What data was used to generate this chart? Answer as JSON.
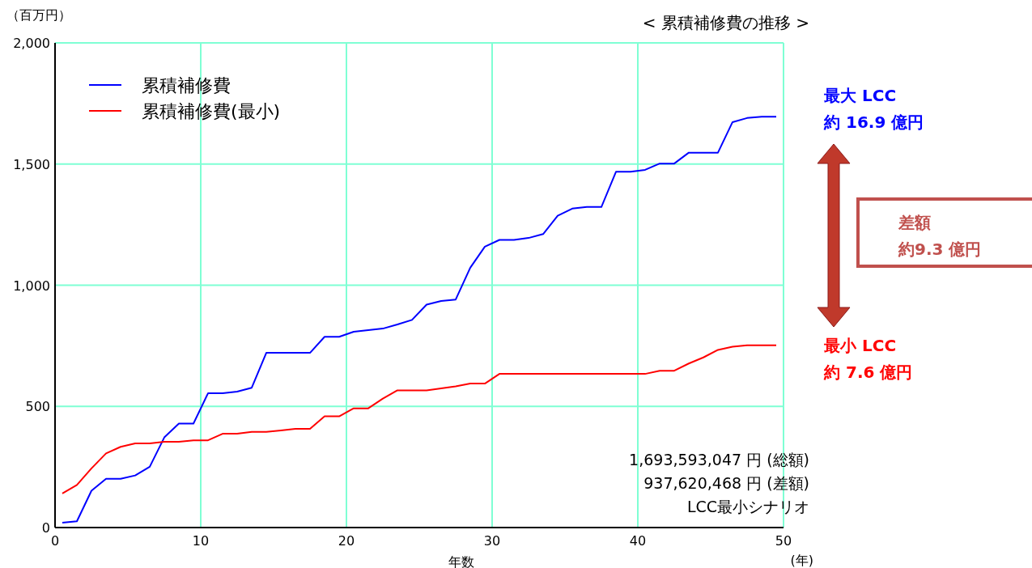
{
  "chart_data": {
    "type": "line",
    "title": "< 累積補修費の推移 >",
    "ylabel": "（百万円）",
    "xlabel": "年数",
    "x": [
      0.5,
      1.5,
      2.5,
      3.5,
      4.5,
      5.5,
      6.5,
      7.5,
      8.5,
      9.5,
      10.5,
      11.5,
      12.5,
      13.5,
      14.5,
      15.5,
      16.5,
      17.5,
      18.5,
      19.5,
      20.5,
      21.5,
      22.5,
      23.5,
      24.5,
      25.5,
      26.5,
      27.5,
      28.5,
      29.5,
      30.5,
      31.5,
      32.5,
      33.5,
      34.5,
      35.5,
      36.5,
      37.5,
      38.5,
      39.5,
      40.5,
      41.5,
      42.5,
      43.5,
      44.5,
      45.5,
      46.5,
      47.5,
      48.5,
      49.5
    ],
    "series": [
      {
        "name": "累積補修費",
        "color": "#0000ff",
        "values": [
          20,
          26,
          152,
          201,
          201,
          215,
          251,
          372,
          429,
          429,
          554,
          554,
          561,
          577,
          721,
          721,
          721,
          721,
          787,
          787,
          808,
          815,
          821,
          838,
          857,
          920,
          935,
          941,
          1072,
          1159,
          1187,
          1187,
          1195,
          1211,
          1287,
          1316,
          1323,
          1323,
          1468,
          1468,
          1476,
          1502,
          1502,
          1547,
          1547,
          1547,
          1673,
          1690,
          1695,
          1695
        ]
      },
      {
        "name": "累積補修費(最小)",
        "color": "#ff0000",
        "values": [
          141,
          176,
          244,
          306,
          333,
          347,
          347,
          354,
          354,
          360,
          360,
          387,
          387,
          395,
          395,
          401,
          407,
          407,
          459,
          459,
          492,
          492,
          532,
          566,
          566,
          566,
          574,
          583,
          594,
          594,
          634,
          634,
          634,
          634,
          634,
          634,
          634,
          634,
          634,
          634,
          634,
          647,
          647,
          677,
          702,
          733,
          746,
          752,
          752,
          752
        ]
      }
    ],
    "xlim": [
      0,
      50
    ],
    "xticks": [
      0,
      10,
      20,
      30,
      40,
      50
    ],
    "ylim": [
      0,
      2000
    ],
    "yticks": [
      0,
      500,
      {
        "value": 1000,
        "label": "1,000"
      },
      {
        "value": 1500,
        "label": "1,500"
      },
      {
        "value": 2000,
        "label": "2,000"
      }
    ],
    "grid": true,
    "legend": "top left",
    "annotations": [
      "(年)",
      "1,693,593,047 円 (総額)\n937,620,468 円 (差額)\nLCC最小シナリオ",
      "最大 LCC\n約 16.9 億円",
      "差額",
      "約9.3 億円",
      "最小 LCC\n約 7.6 億円"
    ]
  }
}
